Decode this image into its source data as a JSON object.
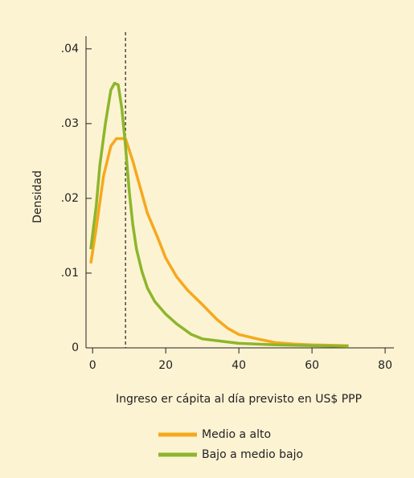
{
  "chart_data": {
    "type": "line",
    "xlabel": "Ingreso er cápita al día previsto en US$ PPP",
    "ylabel": "Densidad",
    "xlim": [
      -1.8,
      82.4
    ],
    "ylim": [
      0,
      0.0417
    ],
    "xticks": [
      0,
      20,
      40,
      60,
      80
    ],
    "yticks": [
      0,
      {
        "value": 0.01,
        "label": ".01"
      },
      {
        "value": 0.02,
        "label": ".02"
      },
      {
        "value": 0.03,
        "label": ".03"
      },
      {
        "value": 0.04,
        "label": ".04"
      }
    ],
    "vline": 9,
    "series": [
      {
        "name": "Medio a alto",
        "color": "#f6a81c",
        "x": [
          -0.5,
          1,
          3,
          5,
          6.5,
          9,
          11,
          13,
          15,
          18,
          20,
          23,
          26,
          30,
          34,
          37,
          40,
          45,
          50,
          55,
          60,
          70
        ],
        "values": [
          0.0113,
          0.016,
          0.023,
          0.027,
          0.028,
          0.028,
          0.025,
          0.0215,
          0.018,
          0.0145,
          0.012,
          0.0095,
          0.0077,
          0.0058,
          0.0038,
          0.0026,
          0.0018,
          0.0012,
          0.0007,
          0.0005,
          0.0004,
          0.0003
        ]
      },
      {
        "name": "Bajo a medio bajo",
        "color": "#8db62b",
        "x": [
          -0.5,
          1,
          2,
          3.5,
          5,
          6,
          7,
          8,
          9,
          10,
          11,
          12,
          13.5,
          15,
          17,
          20,
          23,
          27,
          30,
          35,
          40,
          50,
          60,
          70
        ],
        "values": [
          0.0132,
          0.019,
          0.0245,
          0.03,
          0.0345,
          0.0354,
          0.0352,
          0.032,
          0.027,
          0.021,
          0.0165,
          0.0132,
          0.0102,
          0.008,
          0.0062,
          0.0045,
          0.0032,
          0.0018,
          0.0012,
          0.0009,
          0.0006,
          0.0004,
          0.0003,
          0.0002
        ]
      }
    ]
  }
}
